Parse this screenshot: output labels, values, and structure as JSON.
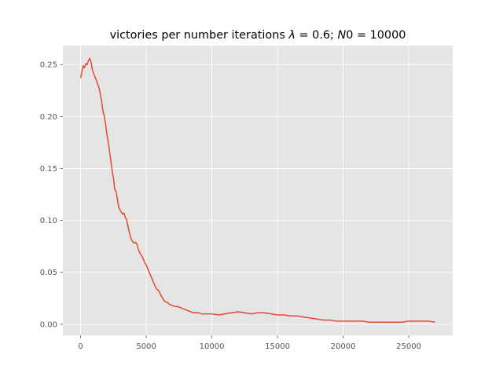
{
  "chart_data": {
    "type": "line",
    "title": "victories per number iterations λ = 0.6; N0 = 10000",
    "title_parts": {
      "prefix": "victories per number iterations ",
      "lambda_symbol": "λ",
      "lambda_expr": " = 0.6; ",
      "n_symbol": "N",
      "n_expr": "0 = 10000"
    },
    "xlabel": "",
    "ylabel": "",
    "xlim": [
      -1350,
      28350
    ],
    "ylim": [
      -0.0107,
      0.2683
    ],
    "xticks": [
      0,
      5000,
      10000,
      15000,
      20000,
      25000
    ],
    "xtick_labels": [
      "0",
      "5000",
      "10000",
      "15000",
      "20000",
      "25000"
    ],
    "yticks": [
      0.0,
      0.05,
      0.1,
      0.15,
      0.2,
      0.25
    ],
    "ytick_labels": [
      "0.00",
      "0.05",
      "0.10",
      "0.15",
      "0.20",
      "0.25"
    ],
    "grid": true,
    "style": "ggplot",
    "colors": {
      "background": "#E5E5E5",
      "grid": "#FFFFFF",
      "line": "#E24A33",
      "tick_text": "#555555"
    },
    "series": [
      {
        "x": [
          0,
          100,
          200,
          300,
          400,
          500,
          600,
          700,
          800,
          900,
          1000,
          1100,
          1200,
          1300,
          1400,
          1500,
          1600,
          1700,
          1800,
          1900,
          2000,
          2100,
          2200,
          2300,
          2400,
          2500,
          2600,
          2700,
          2800,
          2900,
          3000,
          3100,
          3200,
          3300,
          3400,
          3500,
          3600,
          3700,
          3800,
          3900,
          4000,
          4100,
          4200,
          4300,
          4400,
          4500,
          4600,
          4700,
          4800,
          4900,
          5000,
          5100,
          5200,
          5300,
          5400,
          5500,
          5600,
          5700,
          5800,
          5900,
          6000,
          6200,
          6400,
          6600,
          6800,
          7000,
          7200,
          7400,
          7600,
          7800,
          8000,
          8200,
          8400,
          8600,
          8800,
          9000,
          9200,
          9400,
          9600,
          9800,
          10000,
          10500,
          11000,
          11500,
          12000,
          12500,
          13000,
          13500,
          14000,
          14500,
          15000,
          15500,
          16000,
          16500,
          17000,
          17500,
          18000,
          18500,
          19000,
          19500,
          20000,
          20500,
          21000,
          21500,
          22000,
          22500,
          23000,
          23500,
          24000,
          24500,
          25000,
          25500,
          26000,
          26500,
          27000
        ],
        "y": [
          0.237,
          0.243,
          0.249,
          0.247,
          0.251,
          0.25,
          0.254,
          0.256,
          0.252,
          0.245,
          0.241,
          0.238,
          0.235,
          0.231,
          0.228,
          0.222,
          0.215,
          0.205,
          0.201,
          0.193,
          0.183,
          0.176,
          0.167,
          0.158,
          0.148,
          0.141,
          0.13,
          0.128,
          0.121,
          0.113,
          0.11,
          0.108,
          0.106,
          0.107,
          0.103,
          0.101,
          0.095,
          0.089,
          0.084,
          0.081,
          0.079,
          0.078,
          0.079,
          0.077,
          0.072,
          0.069,
          0.067,
          0.065,
          0.062,
          0.059,
          0.057,
          0.054,
          0.051,
          0.048,
          0.045,
          0.042,
          0.039,
          0.036,
          0.034,
          0.033,
          0.031,
          0.026,
          0.022,
          0.021,
          0.019,
          0.018,
          0.017,
          0.017,
          0.016,
          0.015,
          0.014,
          0.013,
          0.012,
          0.011,
          0.011,
          0.011,
          0.01,
          0.01,
          0.01,
          0.01,
          0.01,
          0.009,
          0.01,
          0.011,
          0.012,
          0.011,
          0.01,
          0.011,
          0.011,
          0.01,
          0.009,
          0.009,
          0.008,
          0.008,
          0.007,
          0.006,
          0.005,
          0.004,
          0.004,
          0.003,
          0.003,
          0.003,
          0.003,
          0.003,
          0.002,
          0.002,
          0.002,
          0.002,
          0.002,
          0.002,
          0.003,
          0.003,
          0.003,
          0.003,
          0.002
        ]
      }
    ]
  }
}
